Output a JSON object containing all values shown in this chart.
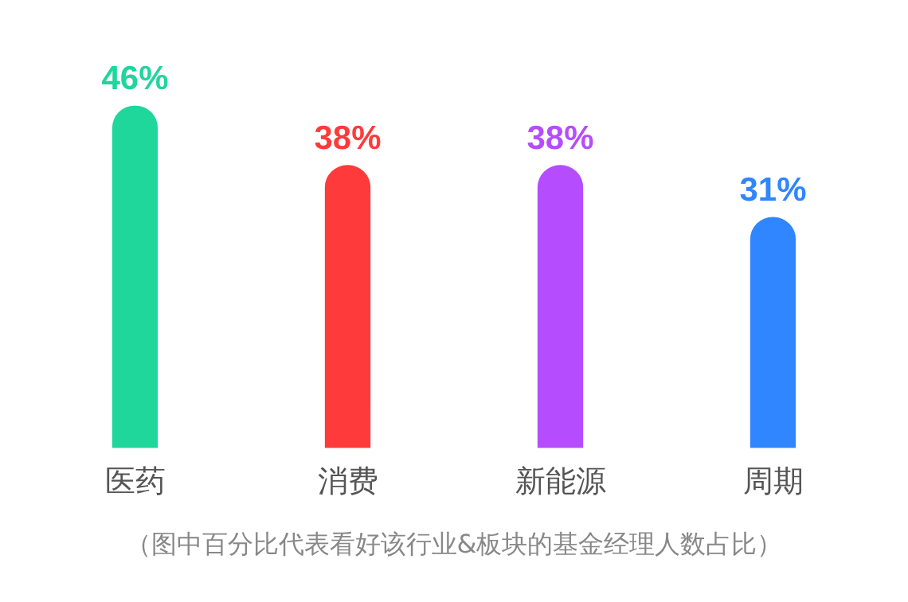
{
  "chart_data": {
    "type": "bar",
    "categories": [
      "医药",
      "消费",
      "新能源",
      "周期"
    ],
    "values": [
      46,
      38,
      38,
      31
    ],
    "colors": [
      "#1fd69b",
      "#ff3a3a",
      "#b54dff",
      "#2f86ff"
    ],
    "value_labels": [
      "46%",
      "38%",
      "38%",
      "31%"
    ],
    "annotations": [
      "（图中百分比代表看好该行业&板块的基金经理人数占比）"
    ]
  }
}
